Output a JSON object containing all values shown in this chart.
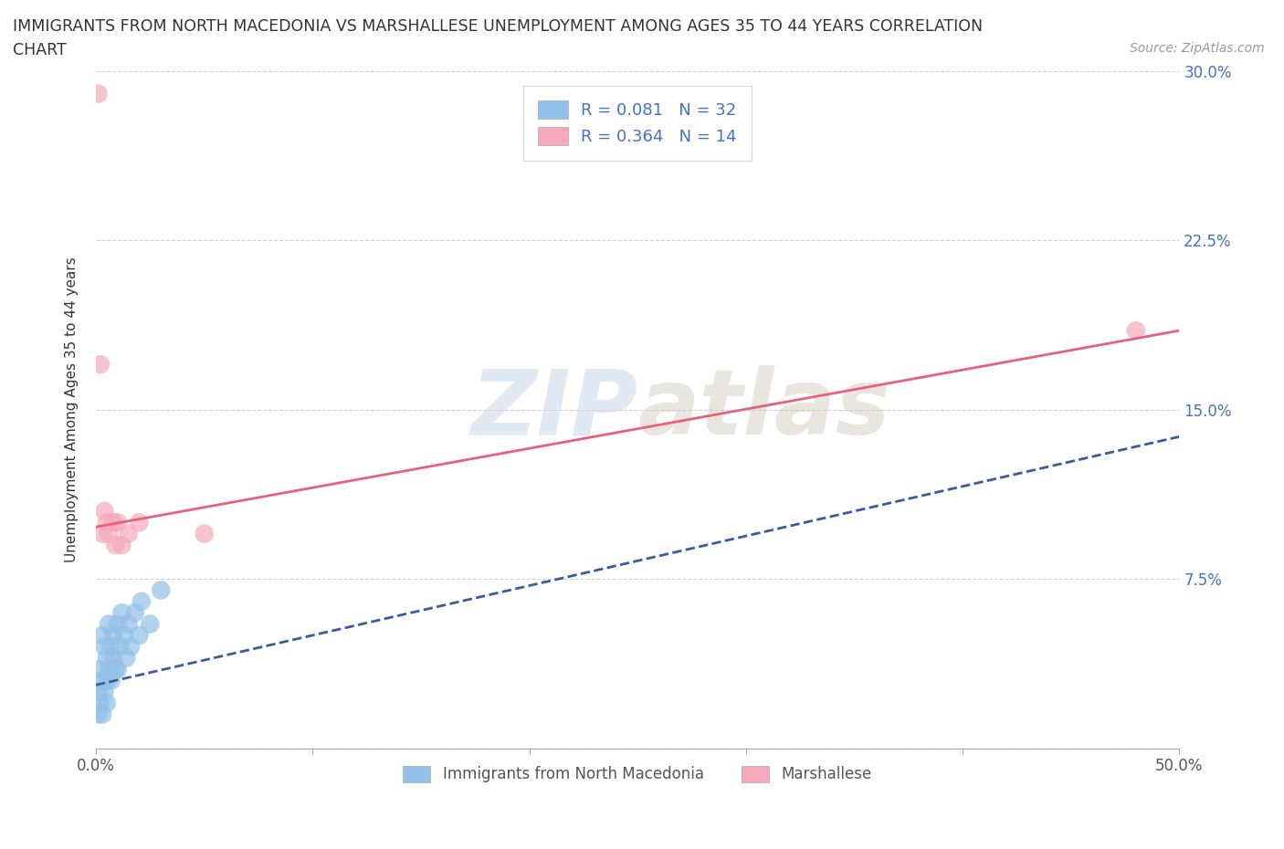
{
  "title_line1": "IMMIGRANTS FROM NORTH MACEDONIA VS MARSHALLESE UNEMPLOYMENT AMONG AGES 35 TO 44 YEARS CORRELATION",
  "title_line2": "CHART",
  "source_text": "Source: ZipAtlas.com",
  "ylabel": "Unemployment Among Ages 35 to 44 years",
  "xlim": [
    0.0,
    0.5
  ],
  "ylim": [
    0.0,
    0.3
  ],
  "xticks": [
    0.0,
    0.1,
    0.2,
    0.3,
    0.4,
    0.5
  ],
  "yticks": [
    0.0,
    0.075,
    0.15,
    0.225,
    0.3
  ],
  "xticklabels": [
    "0.0%",
    "",
    "",
    "",
    "",
    "50.0%"
  ],
  "yticklabels": [
    "",
    "7.5%",
    "15.0%",
    "22.5%",
    "30.0%"
  ],
  "blue_color": "#92C0E8",
  "pink_color": "#F5AABB",
  "blue_line_color": "#3A5BA0",
  "pink_line_color": "#E8607A",
  "legend_label_blue": "Immigrants from North Macedonia",
  "legend_label_pink": "Marshallese",
  "R_blue": 0.081,
  "N_blue": 32,
  "R_pink": 0.364,
  "N_pink": 14,
  "watermark_zip": "ZIP",
  "watermark_atlas": "atlas",
  "blue_scatter_x": [
    0.001,
    0.001,
    0.002,
    0.002,
    0.003,
    0.003,
    0.003,
    0.004,
    0.004,
    0.005,
    0.005,
    0.005,
    0.006,
    0.006,
    0.007,
    0.007,
    0.008,
    0.008,
    0.009,
    0.01,
    0.01,
    0.011,
    0.012,
    0.013,
    0.014,
    0.015,
    0.016,
    0.018,
    0.02,
    0.021,
    0.025,
    0.03
  ],
  "blue_scatter_y": [
    0.025,
    0.015,
    0.035,
    0.02,
    0.05,
    0.03,
    0.015,
    0.045,
    0.025,
    0.04,
    0.03,
    0.02,
    0.055,
    0.035,
    0.045,
    0.03,
    0.05,
    0.04,
    0.035,
    0.055,
    0.035,
    0.045,
    0.06,
    0.05,
    0.04,
    0.055,
    0.045,
    0.06,
    0.05,
    0.065,
    0.055,
    0.07
  ],
  "pink_scatter_x": [
    0.001,
    0.002,
    0.003,
    0.004,
    0.005,
    0.006,
    0.008,
    0.009,
    0.01,
    0.012,
    0.015,
    0.02,
    0.05,
    0.48
  ],
  "pink_scatter_y": [
    0.29,
    0.17,
    0.095,
    0.105,
    0.1,
    0.095,
    0.1,
    0.09,
    0.1,
    0.09,
    0.095,
    0.1,
    0.095,
    0.185
  ],
  "pink_line_x0": 0.0,
  "pink_line_y0": 0.098,
  "pink_line_x1": 0.5,
  "pink_line_y1": 0.185,
  "blue_line_x0": 0.0,
  "blue_line_y0": 0.028,
  "blue_line_x1": 0.5,
  "blue_line_y1": 0.138
}
